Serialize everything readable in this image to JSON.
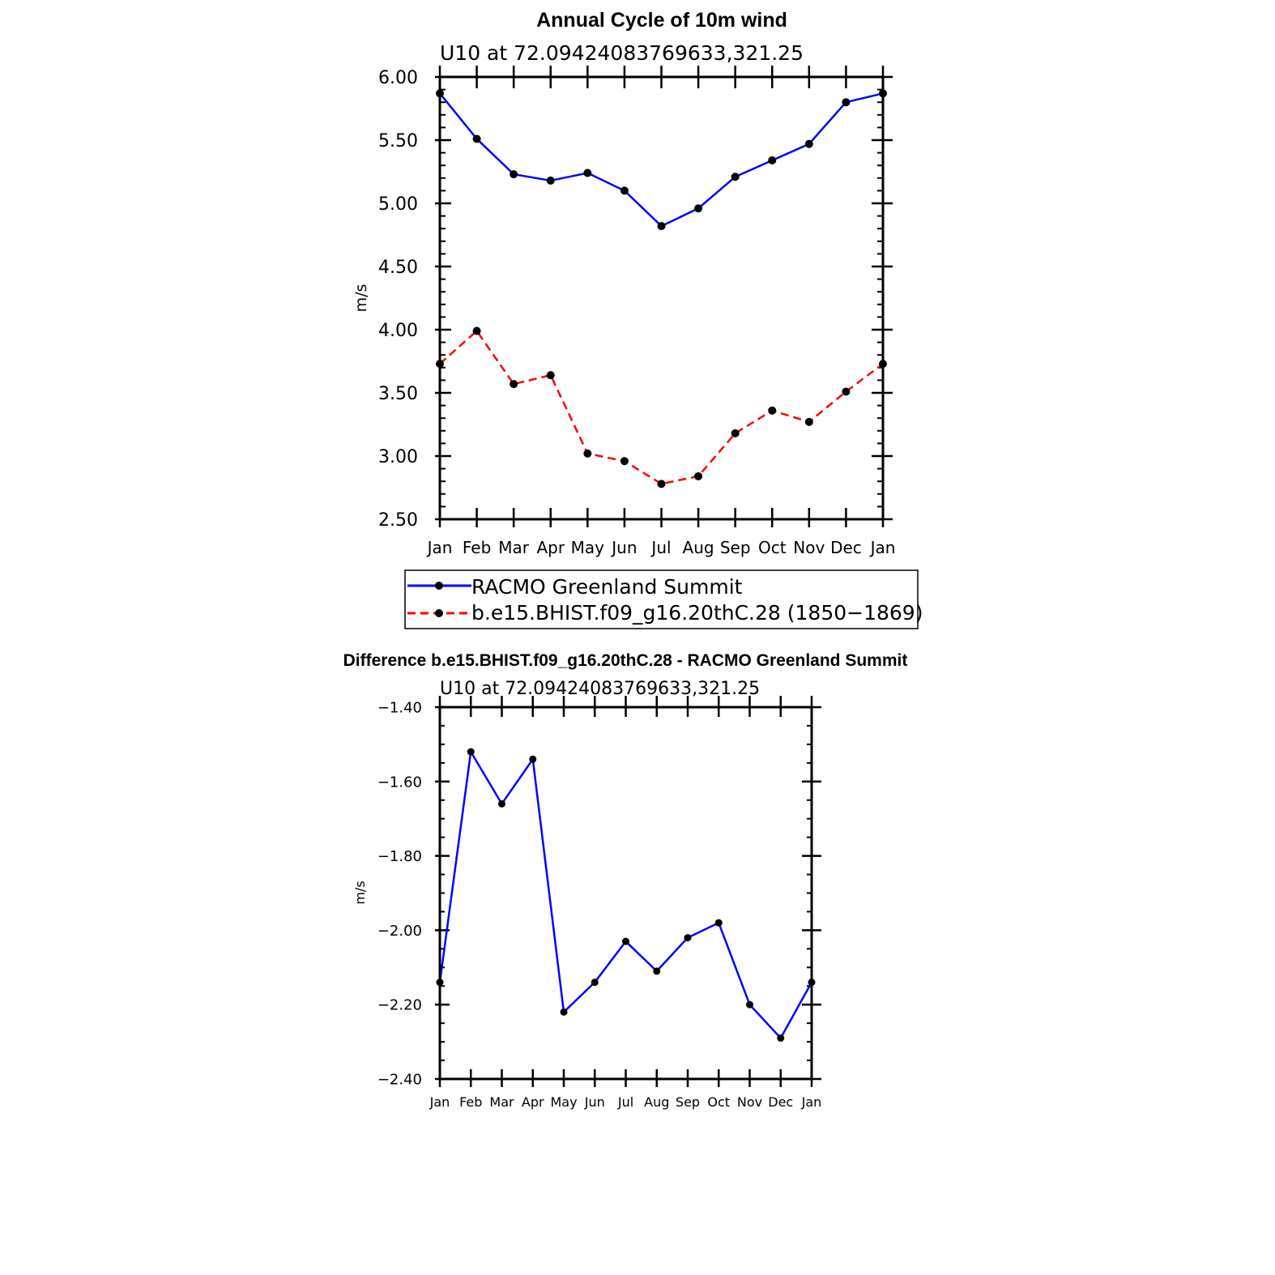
{
  "chart_data": [
    {
      "type": "line",
      "title": "Annual Cycle of 10m wind",
      "subtitle": "U10 at 72.09424083769633,321.25",
      "xlabel": "",
      "ylabel": "m/s",
      "categories": [
        "Jan",
        "Feb",
        "Mar",
        "Apr",
        "May",
        "Jun",
        "Jul",
        "Aug",
        "Sep",
        "Oct",
        "Nov",
        "Dec",
        "Jan"
      ],
      "ylim": [
        2.5,
        6.0
      ],
      "yticks": [
        "6.00",
        "5.50",
        "5.00",
        "4.50",
        "4.00",
        "3.50",
        "3.00",
        "2.50"
      ],
      "legend_position": "bottom",
      "series": [
        {
          "name": "RACMO Greenland Summit",
          "color": "#0000ff",
          "dash": "solid",
          "values": [
            5.87,
            5.51,
            5.23,
            5.18,
            5.24,
            5.1,
            4.82,
            4.96,
            5.21,
            5.34,
            5.47,
            5.8,
            5.87
          ]
        },
        {
          "name": "b.e15.BHIST.f09_g16.20thC.28 (1850−1869)",
          "color": "#ff0000",
          "dash": "dashed",
          "values": [
            3.73,
            3.99,
            3.57,
            3.64,
            3.02,
            2.96,
            2.78,
            2.84,
            3.18,
            3.36,
            3.27,
            3.51,
            3.73
          ]
        }
      ]
    },
    {
      "type": "line",
      "title": "Difference b.e15.BHIST.f09_g16.20thC.28 - RACMO Greenland Summit",
      "subtitle": "U10 at 72.09424083769633,321.25",
      "xlabel": "",
      "ylabel": "m/s",
      "categories": [
        "Jan",
        "Feb",
        "Mar",
        "Apr",
        "May",
        "Jun",
        "Jul",
        "Aug",
        "Sep",
        "Oct",
        "Nov",
        "Dec",
        "Jan"
      ],
      "ylim": [
        -2.4,
        -1.4
      ],
      "yticks": [
        "−1.40",
        "−1.60",
        "−1.80",
        "−2.00",
        "−2.20",
        "−2.40"
      ],
      "series": [
        {
          "color": "#0000ff",
          "dash": "solid",
          "values": [
            -2.14,
            -1.52,
            -1.66,
            -1.54,
            -2.22,
            -2.14,
            -2.03,
            -2.11,
            -2.02,
            -1.98,
            -2.2,
            -2.29,
            -2.14
          ]
        }
      ]
    }
  ]
}
